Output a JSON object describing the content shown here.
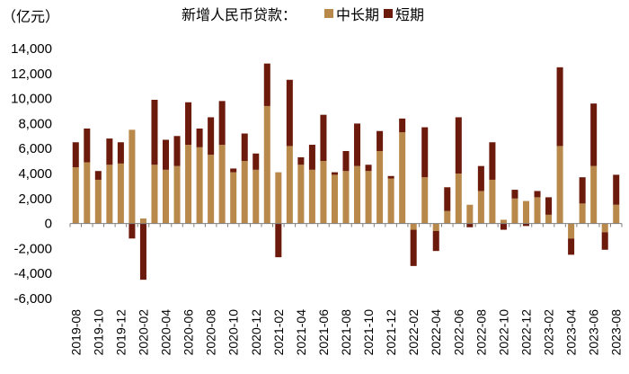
{
  "chart_data": {
    "type": "bar",
    "stacked": true,
    "title": "新增人民币贷款：",
    "ylabel": "（亿元）",
    "ylim": [
      -6000,
      14000
    ],
    "yticks": [
      "14,000",
      "12,000",
      "10,000",
      "8,000",
      "6,000",
      "4,000",
      "2,000",
      "0",
      "-2,000",
      "-4,000",
      "-6,000"
    ],
    "ytick_values": [
      14000,
      12000,
      10000,
      8000,
      6000,
      4000,
      2000,
      0,
      -2000,
      -4000,
      -6000
    ],
    "legend_position": "top",
    "categories": [
      "2019-08",
      "2019-09",
      "2019-10",
      "2019-11",
      "2019-12",
      "2020-01",
      "2020-02",
      "2020-03",
      "2020-04",
      "2020-05",
      "2020-06",
      "2020-07",
      "2020-08",
      "2020-09",
      "2020-10",
      "2020-11",
      "2020-12",
      "2021-01",
      "2021-02",
      "2021-03",
      "2021-04",
      "2021-05",
      "2021-06",
      "2021-07",
      "2021-08",
      "2021-09",
      "2021-10",
      "2021-11",
      "2021-12",
      "2022-01",
      "2022-02",
      "2022-03",
      "2022-04",
      "2022-05",
      "2022-06",
      "2022-07",
      "2022-08",
      "2022-09",
      "2022-10",
      "2022-11",
      "2022-12",
      "2023-01",
      "2023-02",
      "2023-03",
      "2023-04",
      "2023-05",
      "2023-06",
      "2023-07",
      "2023-08"
    ],
    "xtick_labels": [
      "2019-08",
      "2019-10",
      "2019-12",
      "2020-02",
      "2020-04",
      "2020-06",
      "2020-08",
      "2020-10",
      "2020-12",
      "2021-02",
      "2021-04",
      "2021-06",
      "2021-08",
      "2021-10",
      "2021-12",
      "2022-02",
      "2022-04",
      "2022-06",
      "2022-08",
      "2022-10",
      "2022-12",
      "2023-02",
      "2023-04",
      "2023-06",
      "2023-08"
    ],
    "series": [
      {
        "name": "中长期",
        "color": "#b8894b",
        "values": [
          4500,
          4900,
          3500,
          4700,
          4800,
          7500,
          400,
          4700,
          4300,
          4600,
          6300,
          6100,
          5500,
          6300,
          4100,
          5000,
          4300,
          9400,
          4100,
          6200,
          4700,
          4300,
          5000,
          3900,
          4200,
          4600,
          4200,
          5800,
          3600,
          7300,
          -500,
          3700,
          -600,
          1000,
          4000,
          1500,
          2600,
          3500,
          300,
          2000,
          1800,
          2100,
          700,
          6200,
          -1200,
          1600,
          4600,
          -700,
          1500
        ]
      },
      {
        "name": "短期",
        "color": "#6b1a0c",
        "values": [
          2000,
          2700,
          700,
          2100,
          1700,
          -1200,
          -4500,
          5200,
          2400,
          2400,
          3400,
          1500,
          3000,
          3500,
          300,
          2200,
          1300,
          3400,
          -2700,
          5300,
          600,
          2000,
          3700,
          200,
          1600,
          3400,
          500,
          1600,
          200,
          1100,
          -2900,
          4000,
          -1600,
          1900,
          4500,
          -300,
          2000,
          3000,
          -500,
          700,
          -200,
          500,
          1400,
          6300,
          -1300,
          2100,
          5000,
          -1400,
          2400
        ]
      }
    ]
  }
}
